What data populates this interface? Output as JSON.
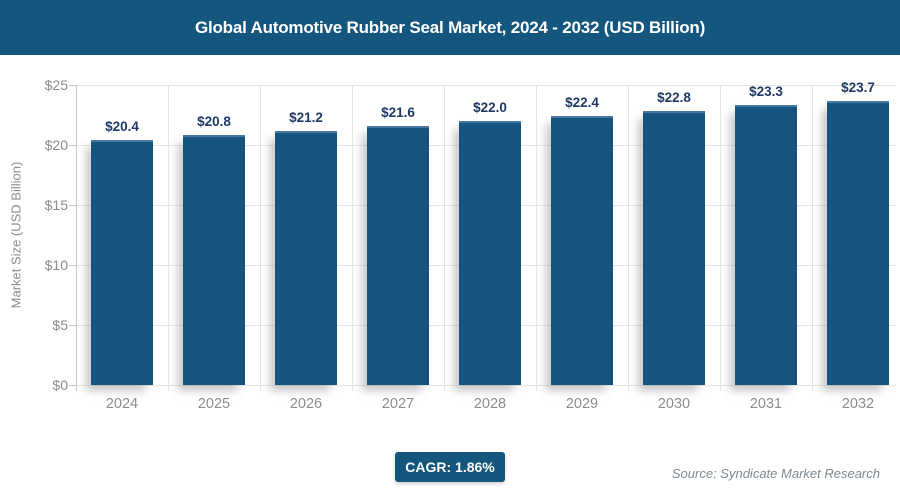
{
  "header": {
    "title": "Global Automotive Rubber Seal Market, 2024 - 2032 (USD Billion)"
  },
  "chart_data": {
    "type": "bar",
    "title": "Global Automotive Rubber Seal Market, 2024 - 2032 (USD Billion)",
    "categories": [
      "2024",
      "2025",
      "2026",
      "2027",
      "2028",
      "2029",
      "2030",
      "2031",
      "2032"
    ],
    "values": [
      20.4,
      20.8,
      21.2,
      21.6,
      22.0,
      22.4,
      22.8,
      23.3,
      23.7
    ],
    "value_labels": [
      "$20.4",
      "$20.8",
      "$21.2",
      "$21.6",
      "$22.0",
      "$22.4",
      "$22.8",
      "$23.3",
      "$23.7"
    ],
    "xlabel": "",
    "ylabel": "Market Size (USD Billion)",
    "ylim": [
      0,
      25
    ],
    "y_ticks": [
      {
        "value": 0,
        "label": "$0"
      },
      {
        "value": 5,
        "label": "$5"
      },
      {
        "value": 10,
        "label": "$10"
      },
      {
        "value": 15,
        "label": "$15"
      },
      {
        "value": 20,
        "label": "$20"
      },
      {
        "value": 25,
        "label": "$25"
      }
    ],
    "grid": true,
    "legend": "none"
  },
  "footer": {
    "cagr_label": "CAGR: 1.86%",
    "source": "Source: Syndicate Market Research"
  },
  "colors": {
    "header_bg": "#15567F",
    "bar": "#14547E",
    "bar_top_edge": "#4879A3",
    "value_label": "#1F3864",
    "axis_text": "#8C8C8C",
    "gridline": "#E4E4E4",
    "axis_line": "#C6C6C6",
    "badge_bg": "#15567F",
    "badge_text": "#FFFFFF",
    "source_text": "#7D8A93",
    "background": "#FFFFFF"
  }
}
